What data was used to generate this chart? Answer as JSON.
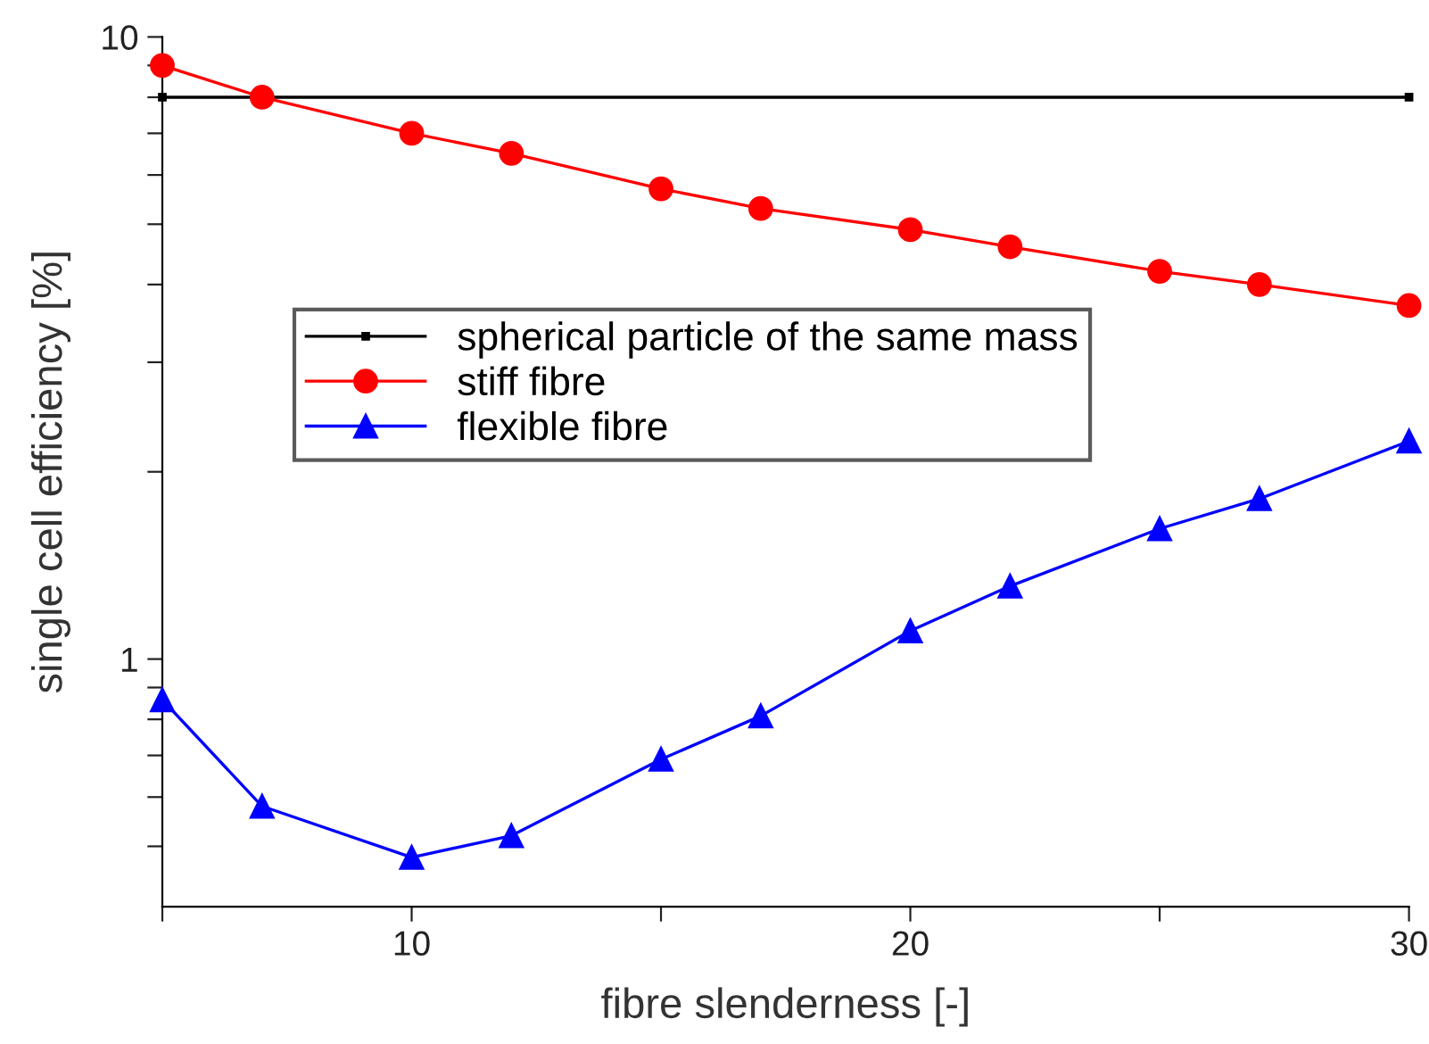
{
  "chart_data": {
    "type": "line",
    "xlabel": "fibre slenderness [-]",
    "ylabel": "single cell efficiency [%]",
    "log": "y",
    "grid": false,
    "legend": "left",
    "xlim": [
      5,
      30
    ],
    "xticks": [
      {
        "value": 5,
        "label": null
      },
      10,
      {
        "value": 15,
        "label": null
      },
      20,
      {
        "value": 25,
        "label": null
      },
      30
    ],
    "ylim": [
      0.4,
      10
    ],
    "yticks": [
      {
        "value": 0.5,
        "label": null
      },
      {
        "value": 0.6,
        "label": null
      },
      {
        "value": 0.7,
        "label": null
      },
      {
        "value": 0.8,
        "label": null
      },
      {
        "value": 0.9,
        "label": null
      },
      1,
      {
        "value": 2,
        "label": null
      },
      {
        "value": 3,
        "label": null
      },
      {
        "value": 4,
        "label": null
      },
      {
        "value": 5,
        "label": null
      },
      {
        "value": 6,
        "label": null
      },
      {
        "value": 7,
        "label": null
      },
      {
        "value": 8,
        "label": null
      },
      {
        "value": 9,
        "label": null
      },
      10
    ],
    "series": [
      {
        "name": "spherical particle of the same mass",
        "color": "#000000",
        "marker": "square",
        "x": [
          5,
          30
        ],
        "values": [
          8.0,
          8.0
        ]
      },
      {
        "name": "stiff fibre",
        "color": "#ff0000",
        "marker": "circle",
        "x": [
          5,
          7,
          10,
          12,
          15,
          17,
          20,
          22,
          25,
          27,
          30
        ],
        "values": [
          9.0,
          8.0,
          7.0,
          6.5,
          5.7,
          5.3,
          4.9,
          4.6,
          4.2,
          4.0,
          3.7
        ]
      },
      {
        "name": "flexible fibre",
        "color": "#0000ff",
        "marker": "triangle",
        "x": [
          5,
          7,
          10,
          12,
          15,
          17,
          20,
          22,
          25,
          27,
          30
        ],
        "values": [
          0.86,
          0.58,
          0.48,
          0.52,
          0.69,
          0.81,
          1.11,
          1.31,
          1.62,
          1.81,
          2.24
        ]
      }
    ]
  }
}
